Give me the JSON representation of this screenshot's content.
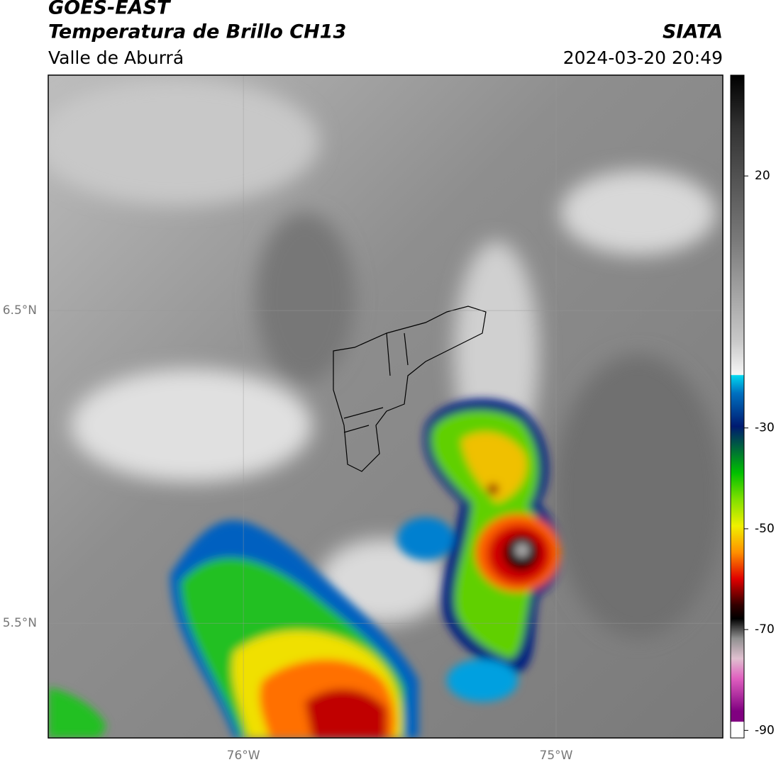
{
  "header": {
    "title": "GOES-EAST",
    "subtitle": "Temperatura de Brillo CH13",
    "region": "Valle de Aburrá",
    "source": "SIATA",
    "datetime": "2024-03-20 20:49"
  },
  "map": {
    "lon_range": [
      -76.624,
      -74.467
    ],
    "lat_range": [
      5.133,
      7.253
    ],
    "lon_ticks": [
      {
        "value": -76,
        "label": "76°W"
      },
      {
        "value": -75,
        "label": "75°W"
      }
    ],
    "lat_ticks": [
      {
        "value": 6.5,
        "label": "6.5°N"
      },
      {
        "value": 5.5,
        "label": "5.5°N"
      }
    ],
    "grid": true
  },
  "colorbar": {
    "range": [
      -91.5,
      40
    ],
    "ticks": [
      20,
      -30,
      -50,
      -70,
      -90
    ]
  }
}
